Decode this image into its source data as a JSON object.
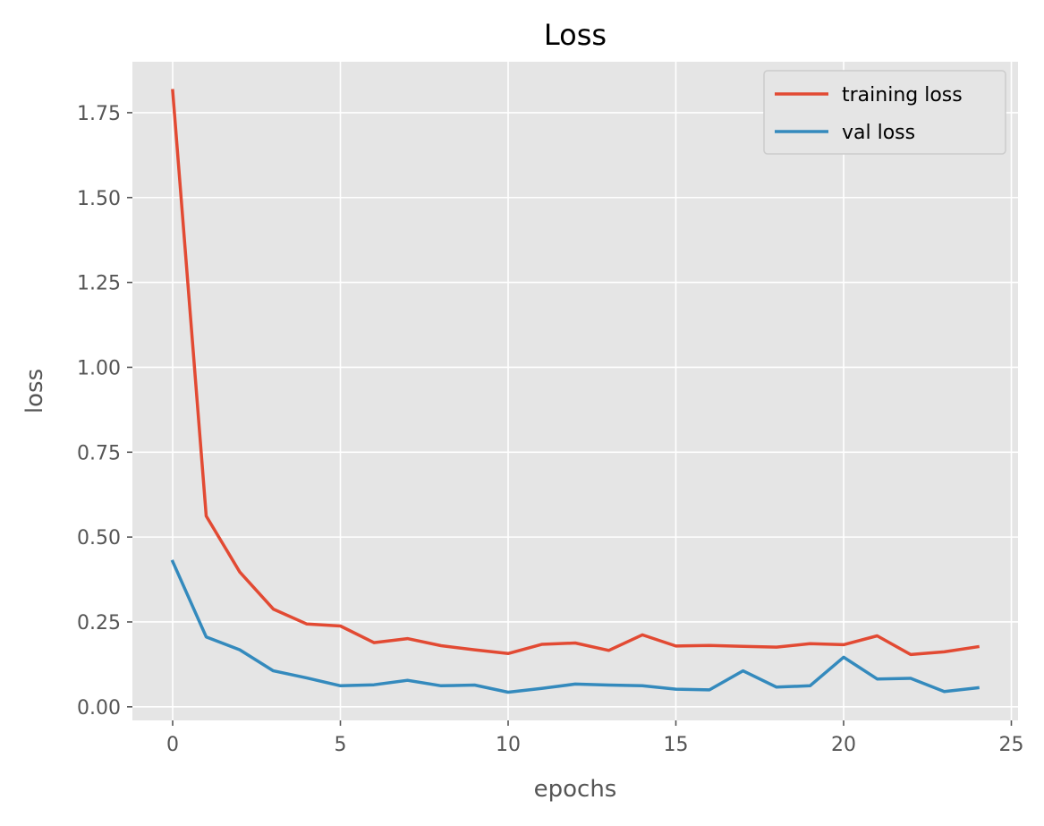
{
  "chart_data": {
    "type": "line",
    "title": "Loss",
    "xlabel": "epochs",
    "ylabel": "loss",
    "xlim": [
      -1.2,
      25.2
    ],
    "ylim": [
      -0.04,
      1.9
    ],
    "xticks": [
      0,
      5,
      10,
      15,
      20,
      25
    ],
    "yticks": [
      0.0,
      0.25,
      0.5,
      0.75,
      1.0,
      1.25,
      1.5,
      1.75
    ],
    "ytick_labels": [
      "0.00",
      "0.25",
      "0.50",
      "0.75",
      "1.00",
      "1.25",
      "1.50",
      "1.75"
    ],
    "grid": true,
    "legend_position": "top-right",
    "x": [
      0,
      1,
      2,
      3,
      4,
      5,
      6,
      7,
      8,
      9,
      10,
      11,
      12,
      13,
      14,
      15,
      16,
      17,
      18,
      19,
      20,
      21,
      22,
      23,
      24
    ],
    "series": [
      {
        "name": "training loss",
        "color": "#E24A33",
        "values": [
          1.815,
          0.562,
          0.397,
          0.288,
          0.244,
          0.238,
          0.189,
          0.201,
          0.18,
          0.168,
          0.157,
          0.184,
          0.188,
          0.166,
          0.212,
          0.179,
          0.181,
          0.178,
          0.176,
          0.186,
          0.183,
          0.209,
          0.154,
          0.162,
          0.177
        ]
      },
      {
        "name": "val loss",
        "color": "#348ABD",
        "values": [
          0.428,
          0.206,
          0.168,
          0.106,
          0.085,
          0.062,
          0.065,
          0.078,
          0.062,
          0.064,
          0.043,
          0.054,
          0.067,
          0.064,
          0.062,
          0.052,
          0.05,
          0.106,
          0.058,
          0.062,
          0.146,
          0.082,
          0.084,
          0.045,
          0.056
        ]
      }
    ]
  }
}
